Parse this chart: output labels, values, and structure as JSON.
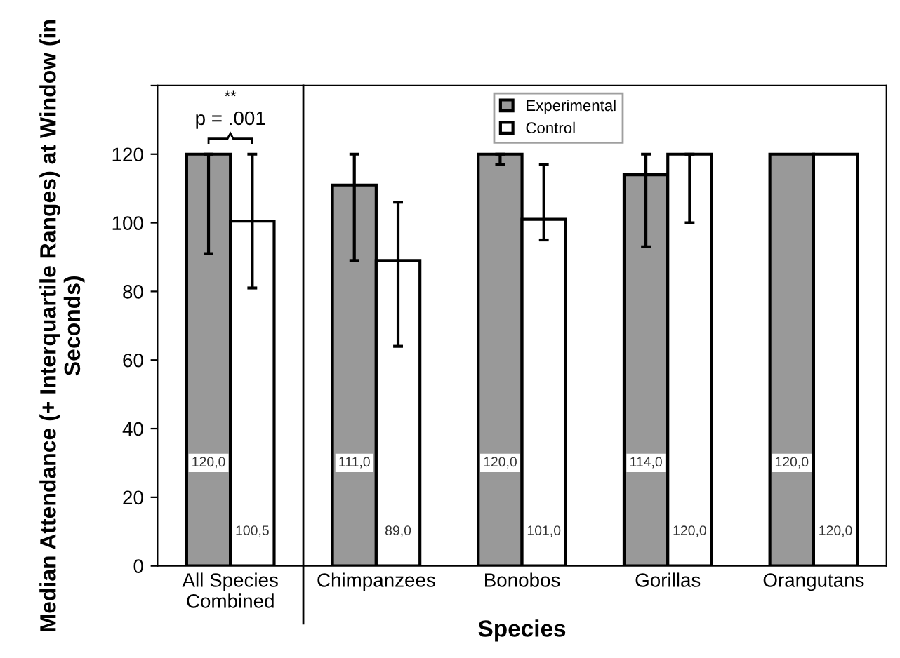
{
  "chart_data": {
    "type": "bar",
    "xlabel": "Species",
    "ylabel": "Median Attendance (+ Interquartile Ranges) at Window (in Seconds)",
    "categories": [
      "All Species Combined",
      "Chimpanzees",
      "Bonobos",
      "Gorillas",
      "Orangutans"
    ],
    "series": [
      {
        "name": "Experimental",
        "color": "#999999",
        "values": [
          120,
          111,
          120,
          114,
          120
        ],
        "errors": [
          [
            91,
            120
          ],
          [
            89,
            120
          ],
          [
            117,
            120
          ],
          [
            93,
            120
          ],
          null
        ],
        "value_labels": [
          "120,0",
          "111,0",
          "120,0",
          "114,0",
          "120,0"
        ]
      },
      {
        "name": "Control",
        "color": "#ffffff",
        "values": [
          100.5,
          89,
          101,
          120,
          120
        ],
        "errors": [
          [
            81,
            120
          ],
          [
            64,
            106
          ],
          [
            95,
            117
          ],
          [
            100,
            120
          ],
          null
        ],
        "value_labels": [
          "100,5",
          "89,0",
          "101,0",
          "120,0",
          "120,0"
        ]
      }
    ],
    "ylim": [
      0,
      140
    ],
    "yticks": [
      0,
      20,
      40,
      60,
      80,
      100,
      120,
      {
        "value": 140,
        "label": null
      }
    ],
    "annotations": [
      "**",
      "p = .001"
    ],
    "legend": "top",
    "grid": false
  }
}
